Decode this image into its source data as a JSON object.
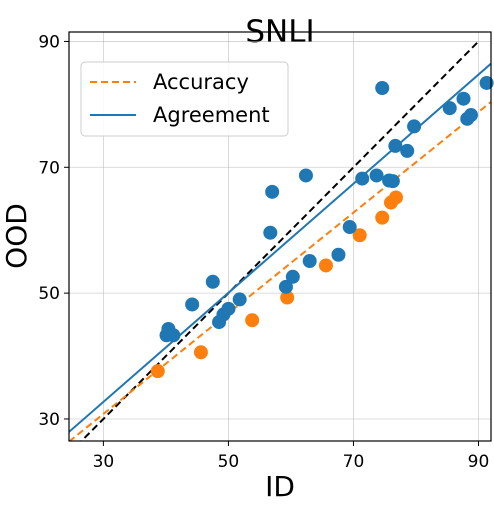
{
  "chart_data": {
    "type": "scatter",
    "title": "SNLI",
    "xlabel": "ID",
    "ylabel": "OOD",
    "x_ticks": [
      30,
      50,
      70,
      90
    ],
    "y_ticks": [
      30,
      50,
      70,
      90
    ],
    "xlim": [
      24.5,
      92
    ],
    "ylim": [
      26.5,
      91.5
    ],
    "grid": true,
    "legend_position": "top-left",
    "series": [
      {
        "name": "Accuracy",
        "color": "#ff7f0e",
        "style": "dashed",
        "fit": {
          "slope": 0.8,
          "intercept": 6.8
        },
        "points": [
          {
            "x": 38.7,
            "y": 37.6
          },
          {
            "x": 45.6,
            "y": 40.6
          },
          {
            "x": 53.8,
            "y": 45.7
          },
          {
            "x": 59.4,
            "y": 49.3
          },
          {
            "x": 65.6,
            "y": 54.4
          },
          {
            "x": 71.0,
            "y": 59.2
          },
          {
            "x": 74.6,
            "y": 62.0
          },
          {
            "x": 76.0,
            "y": 64.4
          },
          {
            "x": 76.8,
            "y": 65.2
          }
        ]
      },
      {
        "name": "Agreement",
        "color": "#1f77b4",
        "style": "solid",
        "fit": {
          "slope": 0.867,
          "intercept": 6.7
        },
        "points": [
          {
            "x": 40.1,
            "y": 43.3
          },
          {
            "x": 40.4,
            "y": 44.3
          },
          {
            "x": 41.2,
            "y": 43.3
          },
          {
            "x": 44.2,
            "y": 48.2
          },
          {
            "x": 47.5,
            "y": 51.8
          },
          {
            "x": 48.5,
            "y": 45.4
          },
          {
            "x": 49.2,
            "y": 46.6
          },
          {
            "x": 50.0,
            "y": 47.5
          },
          {
            "x": 51.8,
            "y": 49.0
          },
          {
            "x": 56.7,
            "y": 59.6
          },
          {
            "x": 57.0,
            "y": 66.1
          },
          {
            "x": 59.2,
            "y": 51.0
          },
          {
            "x": 60.3,
            "y": 52.6
          },
          {
            "x": 62.4,
            "y": 68.7
          },
          {
            "x": 63.0,
            "y": 55.1
          },
          {
            "x": 67.6,
            "y": 56.1
          },
          {
            "x": 69.4,
            "y": 60.5
          },
          {
            "x": 71.4,
            "y": 68.2
          },
          {
            "x": 73.7,
            "y": 68.7
          },
          {
            "x": 74.6,
            "y": 82.6
          },
          {
            "x": 75.7,
            "y": 67.9
          },
          {
            "x": 76.3,
            "y": 67.8
          },
          {
            "x": 76.7,
            "y": 73.4
          },
          {
            "x": 78.6,
            "y": 72.6
          },
          {
            "x": 79.7,
            "y": 76.5
          },
          {
            "x": 85.4,
            "y": 79.4
          },
          {
            "x": 87.6,
            "y": 80.9
          },
          {
            "x": 88.2,
            "y": 77.7
          },
          {
            "x": 88.8,
            "y": 78.3
          },
          {
            "x": 91.3,
            "y": 83.4
          }
        ]
      }
    ],
    "reference_line": {
      "style": "dashed",
      "color": "#000000",
      "slope": 1,
      "intercept": 0
    }
  }
}
